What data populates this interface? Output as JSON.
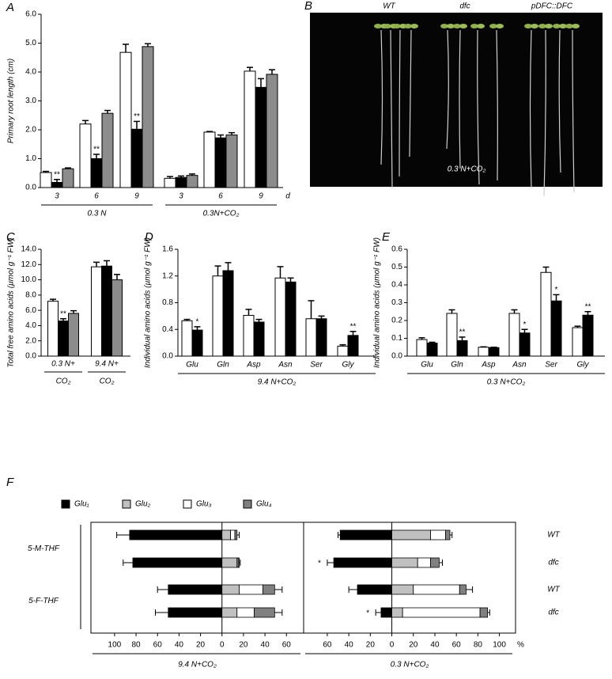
{
  "chart_data": [
    {
      "type": "bar",
      "panel": "A",
      "ylabel": "Primary root length (cm)",
      "categories": [
        "3",
        "6",
        "9",
        "3",
        "6",
        "9"
      ],
      "groups": [
        "0.3 N",
        "0.3N+CO₂"
      ],
      "x_unit": "d",
      "ylim": [
        0,
        6
      ],
      "yticks": [
        {
          "value": 0,
          "label": "0.0"
        },
        {
          "value": 1,
          "label": "1.0"
        },
        {
          "value": 2,
          "label": "2.0"
        },
        {
          "value": 3,
          "label": "3.0"
        },
        {
          "value": 4,
          "label": "4.0"
        },
        {
          "value": 5,
          "label": "5.0"
        },
        {
          "value": 6,
          "label": "6.0"
        }
      ],
      "series": [
        {
          "color": "#ffffff",
          "values": [
            0.52,
            2.2,
            4.68,
            0.32,
            1.92,
            4.03
          ],
          "errors": [
            0.04,
            0.12,
            0.28,
            0.06,
            0.02,
            0.13
          ]
        },
        {
          "color": "#000000",
          "values": [
            0.18,
            1.0,
            2.02,
            0.35,
            1.72,
            3.47
          ],
          "errors": [
            0.1,
            0.15,
            0.27,
            0.05,
            0.1,
            0.3
          ],
          "sig": [
            "**",
            "**",
            "**",
            null,
            null,
            null
          ]
        },
        {
          "color": "#8c8c8c",
          "values": [
            0.65,
            2.57,
            4.88,
            0.42,
            1.82,
            3.92
          ],
          "errors": [
            0.03,
            0.1,
            0.1,
            0.05,
            0.08,
            0.16
          ]
        }
      ]
    },
    {
      "type": "bar",
      "panel": "C",
      "ylabel": "Total free amino acids (µmol g⁻¹ FW)",
      "categories": [
        [
          "0.3 N+",
          "CO₂"
        ],
        [
          "9.4 N+",
          "CO₂"
        ]
      ],
      "ylim": [
        0,
        14
      ],
      "yticks": [
        {
          "value": 0,
          "label": "0.0"
        },
        {
          "value": 2,
          "label": "2.0"
        },
        {
          "value": 4,
          "label": "4.0"
        },
        {
          "value": 6,
          "label": "6.0"
        },
        {
          "value": 8,
          "label": "8.0"
        },
        {
          "value": 10,
          "label": "10.0"
        },
        {
          "value": 12,
          "label": "12.0"
        },
        {
          "value": 14,
          "label": "14.0"
        }
      ],
      "series": [
        {
          "color": "#ffffff",
          "values": [
            7.2,
            11.7
          ],
          "errors": [
            0.25,
            0.6
          ]
        },
        {
          "color": "#000000",
          "values": [
            4.6,
            11.8
          ],
          "errors": [
            0.3,
            0.7
          ],
          "sig": [
            "**",
            null
          ]
        },
        {
          "color": "#8c8c8c",
          "values": [
            5.6,
            10.0
          ],
          "errors": [
            0.35,
            0.7
          ]
        }
      ]
    },
    {
      "type": "bar",
      "panel": "D",
      "ylabel": "Individual amino acids (µmol g⁻¹ FW)",
      "categories": [
        "Glu",
        "Gln",
        "Asp",
        "Asn",
        "Ser",
        "Gly"
      ],
      "groups": [
        "9.4 N+CO₂"
      ],
      "ylim": [
        0,
        1.6
      ],
      "yticks": [
        {
          "value": 0,
          "label": "0.0"
        },
        0.4,
        0.8,
        1.2,
        1.6
      ],
      "series": [
        {
          "color": "#ffffff",
          "values": [
            0.53,
            1.2,
            0.61,
            1.17,
            0.56,
            0.15
          ],
          "errors": [
            0.02,
            0.15,
            0.09,
            0.17,
            0.27,
            0.02
          ]
        },
        {
          "color": "#000000",
          "values": [
            0.39,
            1.28,
            0.51,
            1.11,
            0.56,
            0.31
          ],
          "errors": [
            0.05,
            0.12,
            0.04,
            0.06,
            0.04,
            0.06
          ],
          "sig": [
            "*",
            null,
            null,
            null,
            null,
            "**"
          ]
        }
      ]
    },
    {
      "type": "bar",
      "panel": "E",
      "ylabel": "Individual amino acids (µmol g⁻¹ FW)",
      "categories": [
        "Glu",
        "Gln",
        "Asp",
        "Asn",
        "Ser",
        "Gly"
      ],
      "groups": [
        "0.3 N+CO₂"
      ],
      "ylim": [
        0,
        0.6
      ],
      "yticks": [
        {
          "value": 0,
          "label": "0.0"
        },
        0.1,
        0.2,
        0.3,
        0.4,
        0.5,
        0.6
      ],
      "series": [
        {
          "color": "#ffffff",
          "values": [
            0.093,
            0.24,
            0.05,
            0.24,
            0.47,
            0.16
          ],
          "errors": [
            0.01,
            0.02,
            0.002,
            0.02,
            0.03,
            0.008
          ]
        },
        {
          "color": "#000000",
          "values": [
            0.073,
            0.087,
            0.048,
            0.13,
            0.31,
            0.23
          ],
          "errors": [
            0.005,
            0.02,
            0.002,
            0.02,
            0.035,
            0.02
          ],
          "sig": [
            null,
            "**",
            null,
            "*",
            "*",
            "**"
          ]
        }
      ]
    },
    {
      "type": "stacked-hbar",
      "panel": "F",
      "legend": [
        {
          "name": "Glu₁",
          "color": "#000000"
        },
        {
          "name": "Glu₂",
          "color": "#c0c0c0"
        },
        {
          "name": "Glu₃",
          "color": "#ffffff"
        },
        {
          "name": "Glu₄",
          "color": "#808080"
        }
      ],
      "categories": [
        "WT",
        "dfc",
        "WT",
        "dfc"
      ],
      "row_groups": [
        "5-M-THF",
        "5-F-THF"
      ],
      "panels": [
        {
          "label": "9.4 N+CO₂",
          "xlim": [
            -122,
            76
          ],
          "xticks": [
            {
              "value": -100,
              "label": "100"
            },
            {
              "value": -80,
              "label": "80"
            },
            {
              "value": -60,
              "label": "60"
            },
            {
              "value": -40,
              "label": "40"
            },
            {
              "value": -20,
              "label": "20"
            },
            0,
            20,
            40,
            60
          ],
          "series": [
            {
              "values": [
                -86,
                -83,
                -50,
                -50
              ],
              "errors": [
                12,
                9,
                10,
                12
              ]
            },
            {
              "values": [
                8,
                14,
                16,
                14
              ]
            },
            {
              "values": [
                4,
                1,
                22,
                16
              ]
            },
            {
              "values": [
                2,
                1,
                11,
                19
              ],
              "errors": [
                2,
                1,
                7,
                7
              ]
            }
          ]
        },
        {
          "label": "0.3 N+CO₂",
          "x_unit": "%",
          "xlim": [
            -82,
            115
          ],
          "xticks": [
            {
              "value": -60,
              "label": "60"
            },
            {
              "value": -40,
              "label": "40"
            },
            {
              "value": -20,
              "label": "20"
            },
            0,
            20,
            40,
            60,
            80,
            100
          ],
          "series": [
            {
              "values": [
                -48,
                -54,
                -32,
                -10
              ],
              "errors": [
                2,
                6,
                8,
                5
              ],
              "sig": [
                null,
                "*",
                null,
                "*"
              ]
            },
            {
              "values": [
                36,
                24,
                20,
                10
              ]
            },
            {
              "values": [
                14,
                12,
                43,
                72
              ]
            },
            {
              "values": [
                4,
                8,
                6,
                7
              ],
              "errors": [
                2,
                3,
                6,
                2
              ]
            }
          ]
        }
      ]
    }
  ],
  "photo": {
    "panel": "B",
    "labels": [
      "WT",
      "dfc",
      "pDFC::DFC"
    ],
    "caption": "0.3 N+CO₂"
  }
}
